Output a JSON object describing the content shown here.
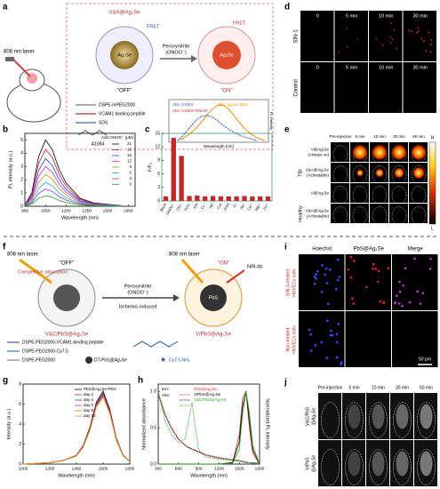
{
  "letters": [
    "a",
    "b",
    "c",
    "d",
    "e",
    "f",
    "g",
    "h",
    "i",
    "j"
  ],
  "panel_a": {
    "laser": "808 nm laser",
    "probe": "V&A@Ag₂Se",
    "trigger": [
      "Peroxynitrite",
      "(ONOO⁻)"
    ],
    "fret_off": "FRET",
    "fret_on": "FRET",
    "core_off": "Ag₂Se",
    "core_on": "Ag₂Se",
    "off": "\"OFF\"",
    "on": "\"ON\"",
    "legend": [
      "DSPE-mPEG2000",
      "VCAM1 binding peptide",
      "SDS"
    ],
    "dye": "A1094",
    "inset": {
      "abs1": "Abs: A1094",
      "em": "Em: Ag₂Se QDs",
      "abs2": "Abs: A1094+ONOO⁻",
      "xlabel": "Wavelength (nm)",
      "ylabel": "PL intensity"
    }
  },
  "panel_d": {
    "columns": [
      "0",
      "5 min",
      "10 min",
      "30 min"
    ],
    "rows": [
      "SIN-1",
      "Control"
    ]
  },
  "panel_e": {
    "columns": [
      "Pre-injection",
      "5 min",
      "10 min",
      "30 min",
      "60 min"
    ],
    "rows": [
      [
        "V@Ag₂Se",
        "(Always on)"
      ],
      [
        "V&A@Ag₂Se",
        "(Activatable)"
      ],
      [
        "A@Ag₂Se"
      ],
      [
        "V&A@Ag₂Se",
        "(Activatable)"
      ]
    ],
    "groups": [
      "TBI",
      "Healthy"
    ],
    "scale": [
      "H",
      "L"
    ]
  },
  "panel_f": {
    "laser_left": "808 nm laser",
    "off": "\"OFF\"",
    "competitive": "Competitive absorption",
    "trigger": [
      "Peroxynitrite",
      "(ONOO⁻)"
    ],
    "ischemic": "Ischemic-induced",
    "laser_right": "808 nm laser",
    "on": "\"ON\"",
    "nir": "NIR-IIb",
    "core": "PbS",
    "label_left": "V&C/PbS@Ag₂Se",
    "label_right": "V/PbS@Ag₂Se",
    "legend": [
      "DSPE-PEG2000-VCAM1-binding peptide",
      "DSPE-PEG2000-Cy7.5",
      "DSPE-PEG2000",
      "DT-PbS@Ag₂Se",
      "Cy7.5-NH₂"
    ]
  },
  "panel_i": {
    "columns": [
      "Hoechst",
      "PbS@Ag₂Se",
      "Merge"
    ],
    "rows": [
      [
        "SIN-1-treated",
        "HUVECs cells"
      ],
      [
        "Non-treated",
        "HUVECs cells"
      ]
    ],
    "scale_bar": "50 μm"
  },
  "panel_j": {
    "columns": [
      "Pre-injection",
      "5 min",
      "10 min",
      "30 min",
      "60 min"
    ],
    "rows": [
      [
        "V&C/PbS",
        "@Ag₂Se"
      ],
      [
        "V/PbS",
        "@Ag₂Se"
      ]
    ]
  },
  "chart_data": [
    {
      "type": "line",
      "xlabel": "Wavelength (nm)",
      "ylabel": "PL intensity (a.u.)",
      "legend_title": "Add ONOO⁻ (μM)",
      "x": [
        900,
        950,
        1000,
        1050,
        1100,
        1150,
        1200,
        1300,
        1400,
        1600
      ],
      "xlim": [
        900,
        1700
      ],
      "xticks": [
        900,
        1050,
        1200,
        1350,
        1500,
        1650
      ],
      "ylim": [
        0,
        5.5
      ],
      "yticks": [
        0,
        1,
        2,
        3,
        4,
        5
      ],
      "series": [
        {
          "name": "21",
          "color": "#000000",
          "values": [
            0.1,
            1.0,
            3.75,
            5.0,
            4.25,
            2.75,
            1.75,
            0.6,
            0.25,
            0.05
          ]
        },
        {
          "name": "18",
          "color": "#e41a1c",
          "values": [
            0.09,
            0.86,
            3.23,
            4.3,
            3.66,
            2.37,
            1.51,
            0.52,
            0.22,
            0.04
          ]
        },
        {
          "name": "15",
          "color": "#1f3fff",
          "values": [
            0.07,
            0.72,
            2.7,
            3.6,
            3.06,
            1.98,
            1.26,
            0.43,
            0.18,
            0.04
          ]
        },
        {
          "name": "12",
          "color": "#e020e0",
          "values": [
            0.06,
            0.6,
            2.25,
            3.0,
            2.55,
            1.65,
            1.05,
            0.36,
            0.15,
            0.03
          ]
        },
        {
          "name": "9",
          "color": "#a0a000",
          "values": [
            0.05,
            0.48,
            1.8,
            2.4,
            2.04,
            1.32,
            0.84,
            0.29,
            0.12,
            0.02
          ]
        },
        {
          "name": "6",
          "color": "#20a0ff",
          "values": [
            0.04,
            0.36,
            1.35,
            1.8,
            1.53,
            0.99,
            0.63,
            0.22,
            0.09,
            0.02
          ]
        },
        {
          "name": "3",
          "color": "#8040c0",
          "values": [
            0.03,
            0.26,
            0.98,
            1.3,
            1.11,
            0.72,
            0.46,
            0.16,
            0.07,
            0.01
          ]
        },
        {
          "name": "0",
          "color": "#20b020",
          "values": [
            0.02,
            0.16,
            0.6,
            0.8,
            0.68,
            0.44,
            0.28,
            0.1,
            0.04,
            0.01
          ]
        }
      ]
    },
    {
      "type": "bar",
      "ylabel": "F/F₀",
      "color": "#c62828",
      "frame_color": "#3a9a7a",
      "categories": [
        "Blank",
        "ONOO⁻",
        "ClO⁻",
        "H₂O₂",
        "·OH",
        "O₂⁻",
        "NO",
        "Cys",
        "GSH",
        "K⁺",
        "Na⁺",
        "Ca²⁺",
        "Mg²⁺",
        "Zn²⁺"
      ],
      "values": [
        1,
        14,
        10,
        1.1,
        1.2,
        1,
        1.1,
        1,
        1,
        1,
        1.1,
        1,
        1,
        1
      ],
      "ylim": [
        0,
        15
      ],
      "yticks": [
        0,
        3,
        6,
        9,
        12,
        15
      ]
    },
    {
      "type": "line",
      "xlabel": "Wavelength (nm)",
      "ylabel": "Intensity (a.u.)",
      "x": [
        1000,
        1200,
        1300,
        1400,
        1450,
        1500,
        1550,
        1600,
        1650,
        1700,
        1750,
        1800
      ],
      "xlim": [
        1000,
        1800
      ],
      "xticks": [
        1000,
        1200,
        1400,
        1600,
        1800
      ],
      "ylim": [
        0,
        8
      ],
      "yticks": [
        0,
        2,
        4,
        6,
        8
      ],
      "series": [
        {
          "name": "PbS@Ag₂Se-PEG",
          "color": "#000000",
          "values": [
            0,
            0.15,
            0.37,
            0.88,
            1.83,
            3.65,
            6.21,
            7.3,
            5.48,
            2.56,
            0.88,
            0.29
          ]
        },
        {
          "name": "day 2",
          "color": "#e41a1c",
          "values": [
            0,
            0.14,
            0.36,
            0.85,
            1.78,
            3.55,
            6.04,
            7.1,
            5.33,
            2.49,
            0.85,
            0.28
          ]
        },
        {
          "name": "day 4",
          "color": "#1f3fff",
          "values": [
            0,
            0.14,
            0.35,
            0.84,
            1.75,
            3.5,
            5.95,
            7.0,
            5.25,
            2.45,
            0.84,
            0.28
          ]
        },
        {
          "name": "day 6",
          "color": "#e020e0",
          "values": [
            0,
            0.14,
            0.35,
            0.83,
            1.73,
            3.45,
            5.87,
            6.9,
            5.18,
            2.42,
            0.83,
            0.28
          ]
        },
        {
          "name": "day 8",
          "color": "#a0a000",
          "values": [
            0,
            0.14,
            0.34,
            0.82,
            1.7,
            3.4,
            5.78,
            6.8,
            5.1,
            2.38,
            0.82,
            0.27
          ]
        },
        {
          "name": "day 10",
          "color": "#ff8c00",
          "values": [
            0,
            0.13,
            0.34,
            0.8,
            1.68,
            3.35,
            5.7,
            6.7,
            5.03,
            2.35,
            0.8,
            0.27
          ]
        }
      ]
    },
    {
      "type": "line",
      "xlabel": "Wavelength (nm)",
      "ylabel": "Normalized absorbance",
      "y2label": "Normalized PL intensity",
      "legend_em": "Em:",
      "legend_abs": "Abs:",
      "x": [
        300,
        400,
        500,
        600,
        700,
        750,
        800,
        850,
        900,
        1000,
        1200,
        1400,
        1500,
        1550,
        1600,
        1650,
        1700,
        1800
      ],
      "xlim": [
        300,
        1800
      ],
      "xticks": [
        300,
        600,
        900,
        1200,
        1500,
        1800
      ],
      "ylim": [
        0,
        1.1
      ],
      "yticks": [
        {
          "value": 0,
          "label": "0.0"
        },
        {
          "value": 0.5,
          "label": "0.5"
        },
        {
          "value": 1,
          "label": "1.0"
        }
      ],
      "series": [
        {
          "name": "PbS@Ag₂Se",
          "color": "#e41a1c",
          "values": [
            0,
            0,
            0,
            0,
            0,
            0,
            0,
            0,
            0,
            0,
            0,
            0.02,
            0.4,
            0.9,
            1,
            0.5,
            0.15,
            0
          ]
        },
        {
          "name": "V/PbS@Ag₂Se",
          "color": "#000000",
          "values": [
            0,
            0,
            0,
            0,
            0,
            0,
            0,
            0,
            0,
            0,
            0,
            0.02,
            0.3,
            0.8,
            1,
            0.6,
            0.2,
            0
          ]
        },
        {
          "name": "V&C/PbS@Ag₂Se",
          "color": "#20b020",
          "values": [
            0,
            0,
            0,
            0,
            0,
            0,
            0,
            0,
            0,
            0,
            0,
            0.01,
            0.2,
            0.7,
            1,
            0.7,
            0.25,
            0
          ]
        },
        {
          "color": "#e41a1c",
          "dash": true,
          "values": [
            1,
            0.7,
            0.5,
            0.35,
            0.25,
            0.22,
            0.2,
            0.18,
            0.16,
            0.12,
            0.08,
            0.05,
            0.04,
            0.03,
            0.02,
            0.02,
            0.01,
            0.01
          ]
        },
        {
          "color": "#000000",
          "dash": true,
          "values": [
            0.95,
            0.68,
            0.48,
            0.34,
            0.26,
            0.23,
            0.21,
            0.19,
            0.17,
            0.13,
            0.09,
            0.06,
            0.05,
            0.04,
            0.03,
            0.02,
            0.02,
            0.01
          ]
        },
        {
          "color": "#20b020",
          "dash": true,
          "values": [
            1,
            0.6,
            0.4,
            0.3,
            0.35,
            0.6,
            0.85,
            0.5,
            0.2,
            0.1,
            0.07,
            0.05,
            0.04,
            0.03,
            0.02,
            0.02,
            0.01,
            0.01
          ]
        }
      ]
    }
  ]
}
